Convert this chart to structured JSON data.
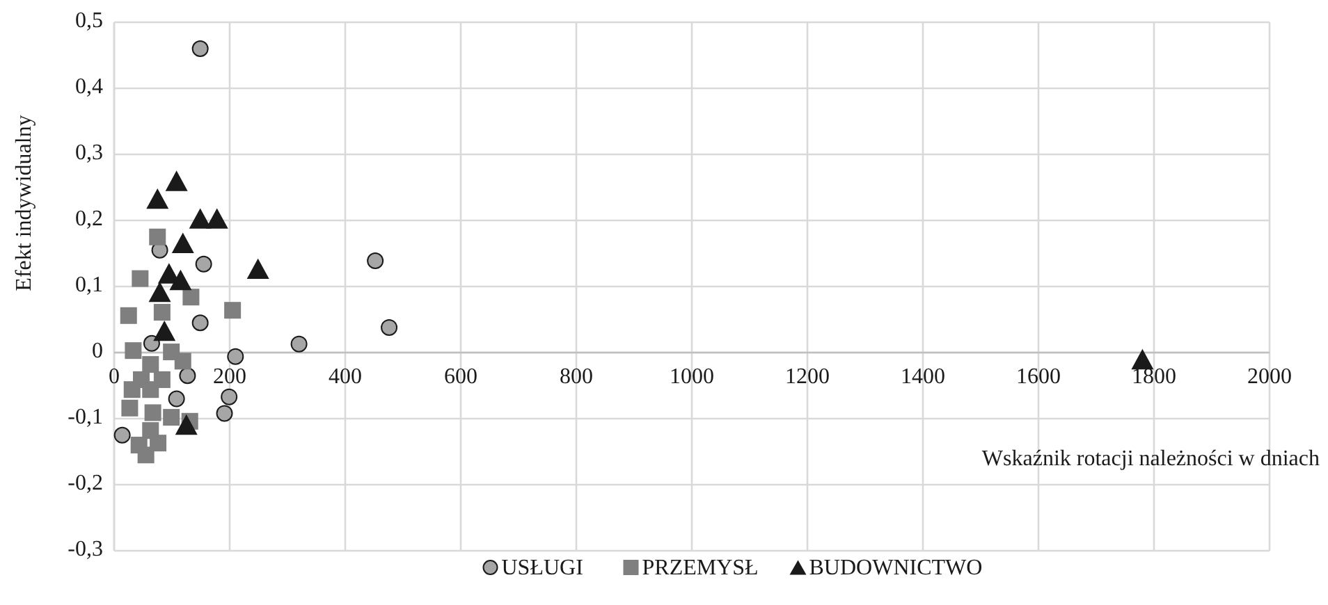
{
  "chart_data": {
    "type": "scatter",
    "xlabel": "Wskaźnik rotacji należności w dniach",
    "ylabel": "Efekt indywidualny",
    "xlim": [
      0,
      2000
    ],
    "xticks": [
      0,
      200,
      400,
      600,
      800,
      1000,
      1200,
      1400,
      1600,
      1800,
      2000
    ],
    "ylim": [
      -0.3,
      0.5
    ],
    "yticks": [
      {
        "value": -0.3,
        "label": "-0,3"
      },
      {
        "value": -0.2,
        "label": "-0,2"
      },
      {
        "value": -0.1,
        "label": "-0,1"
      },
      0,
      {
        "value": 0.1,
        "label": "0,1"
      },
      {
        "value": 0.2,
        "label": "0,2"
      },
      {
        "value": 0.3,
        "label": "0,3"
      },
      {
        "value": 0.4,
        "label": "0,4"
      },
      {
        "value": 0.5,
        "label": "0,5"
      }
    ],
    "grid": true,
    "legend": "bottom",
    "series": [
      {
        "name": "USŁUGI",
        "color": "#a6a6a6",
        "marker": "circle",
        "x": [
          149,
          79,
          155,
          149,
          65,
          210,
          127,
          199,
          108,
          191,
          14,
          452,
          476,
          320
        ],
        "values": [
          0.46,
          0.155,
          0.134,
          0.045,
          0.014,
          -0.006,
          -0.035,
          -0.067,
          -0.07,
          -0.092,
          -0.125,
          0.139,
          0.038,
          0.013
        ]
      },
      {
        "name": "PRZEMYSŁ",
        "color": "#7f7f7f",
        "marker": "square",
        "x": [
          75,
          45,
          133,
          205,
          25,
          83,
          33,
          99,
          119,
          63,
          47,
          83,
          31,
          63,
          27,
          67,
          99,
          131,
          63,
          43,
          76,
          55
        ],
        "values": [
          0.175,
          0.112,
          0.084,
          0.064,
          0.056,
          0.061,
          0.003,
          0.001,
          -0.013,
          -0.018,
          -0.041,
          -0.041,
          -0.056,
          -0.056,
          -0.084,
          -0.091,
          -0.098,
          -0.104,
          -0.118,
          -0.14,
          -0.137,
          -0.155
        ]
      },
      {
        "name": "BUDOWNICTWO",
        "color": "#1a1a1a",
        "marker": "triangle",
        "x": [
          108,
          75,
          149,
          178,
          119,
          95,
          115,
          79,
          87,
          125,
          249,
          1780
        ],
        "values": [
          0.26,
          0.233,
          0.203,
          0.203,
          0.166,
          0.12,
          0.11,
          0.092,
          0.033,
          -0.109,
          0.127,
          -0.01
        ]
      }
    ]
  }
}
